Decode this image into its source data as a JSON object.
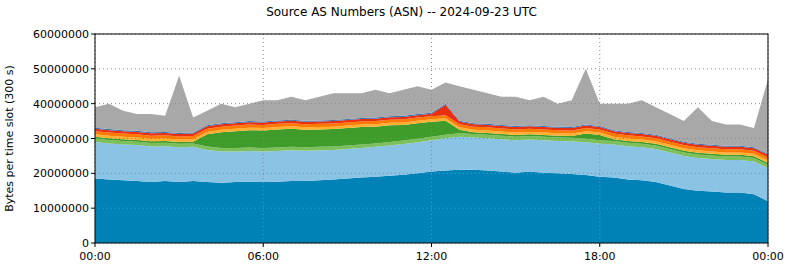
{
  "chart_data": {
    "type": "area",
    "title": "Source AS Numbers (ASN) -- 2024-09-23 UTC",
    "y_label": "Bytes per time slot (300 s)",
    "stacked": true,
    "grid": true,
    "x": [
      0,
      30,
      60,
      90,
      120,
      150,
      180,
      210,
      240,
      270,
      300,
      330,
      360,
      390,
      420,
      450,
      480,
      510,
      540,
      570,
      600,
      630,
      660,
      690,
      720,
      750,
      780,
      810,
      840,
      870,
      900,
      930,
      960,
      990,
      1020,
      1050,
      1080,
      1110,
      1140,
      1170,
      1200,
      1230,
      1260,
      1290,
      1320,
      1350,
      1380,
      1410,
      1440
    ],
    "xlim": [
      0,
      1440
    ],
    "xticks": [
      {
        "value": 0,
        "label": "00:00"
      },
      {
        "value": 360,
        "label": "06:00"
      },
      {
        "value": 720,
        "label": "12:00"
      },
      {
        "value": 1080,
        "label": "18:00"
      },
      {
        "value": 1440,
        "label": "00:00"
      }
    ],
    "ylim": [
      0,
      60000000
    ],
    "yticks": [
      0,
      10000000,
      20000000,
      30000000,
      40000000,
      50000000,
      60000000
    ],
    "series": [
      {
        "color": "#0082b6",
        "values": [
          18500000,
          18200000,
          18000000,
          17800000,
          17500000,
          17800000,
          17500000,
          17800000,
          17500000,
          17300000,
          17500000,
          17600000,
          17500000,
          17600000,
          17800000,
          17800000,
          18000000,
          18200000,
          18500000,
          18800000,
          19000000,
          19300000,
          19600000,
          20000000,
          20500000,
          20800000,
          21000000,
          21000000,
          20800000,
          20500000,
          20200000,
          20500000,
          20200000,
          20000000,
          19800000,
          19500000,
          19000000,
          18800000,
          18200000,
          18000000,
          17500000,
          16500000,
          15500000,
          15000000,
          14800000,
          14500000,
          14500000,
          14000000,
          12000000
        ]
      },
      {
        "color": "#8ac3e4",
        "values": [
          10500000,
          10400000,
          10300000,
          10300000,
          10200000,
          10000000,
          10000000,
          9800000,
          9200000,
          9000000,
          8800000,
          8800000,
          8800000,
          8800000,
          8800000,
          8700000,
          8600000,
          8500000,
          8500000,
          8500000,
          8600000,
          8700000,
          8800000,
          8900000,
          9000000,
          9300000,
          9500000,
          9300000,
          9300000,
          9300000,
          9300000,
          9200000,
          9300000,
          9300000,
          9400000,
          9400000,
          9500000,
          9500000,
          9600000,
          9500000,
          9500000,
          9500000,
          9500000,
          9400000,
          9300000,
          9300000,
          9300000,
          9400000,
          9500000
        ]
      },
      {
        "color": "#7cbf5c",
        "values": [
          1000000,
          1000000,
          1000000,
          1000000,
          1000000,
          1000000,
          1000000,
          1000000,
          1000000,
          1000000,
          1000000,
          1000000,
          1000000,
          1000000,
          1000000,
          1000000,
          1000000,
          1000000,
          1000000,
          1000000,
          1000000,
          1000000,
          1000000,
          1000000,
          1000000,
          1000000,
          1000000,
          1000000,
          1000000,
          1000000,
          1000000,
          1000000,
          1000000,
          1000000,
          1000000,
          1000000,
          1000000,
          1000000,
          1000000,
          1000000,
          1000000,
          1000000,
          1000000,
          1000000,
          1000000,
          1000000,
          1000000,
          1000000,
          1000000
        ]
      },
      {
        "color": "#3f9b2a",
        "values": [
          500000,
          500000,
          500000,
          500000,
          500000,
          500000,
          500000,
          500000,
          3500000,
          4500000,
          4800000,
          5000000,
          5000000,
          5200000,
          5200000,
          5000000,
          5000000,
          5000000,
          5000000,
          5000000,
          4800000,
          4800000,
          4500000,
          4500000,
          4300000,
          4000000,
          1000000,
          500000,
          500000,
          500000,
          500000,
          500000,
          500000,
          500000,
          500000,
          1500000,
          1500000,
          500000,
          500000,
          500000,
          500000,
          500000,
          500000,
          500000,
          500000,
          500000,
          500000,
          500000,
          500000
        ]
      },
      {
        "color": "#ffb030",
        "values": [
          700000,
          700000,
          700000,
          700000,
          700000,
          700000,
          700000,
          700000,
          700000,
          700000,
          700000,
          700000,
          700000,
          700000,
          700000,
          700000,
          700000,
          700000,
          700000,
          700000,
          700000,
          700000,
          700000,
          700000,
          700000,
          700000,
          700000,
          700000,
          700000,
          700000,
          700000,
          700000,
          700000,
          700000,
          700000,
          700000,
          700000,
          700000,
          700000,
          700000,
          700000,
          700000,
          700000,
          700000,
          700000,
          700000,
          700000,
          700000,
          700000
        ]
      },
      {
        "color": "#ff7a00",
        "values": [
          900000,
          900000,
          900000,
          900000,
          900000,
          900000,
          900000,
          900000,
          900000,
          900000,
          900000,
          900000,
          900000,
          900000,
          900000,
          900000,
          900000,
          900000,
          900000,
          900000,
          900000,
          900000,
          900000,
          900000,
          900000,
          900000,
          900000,
          900000,
          900000,
          900000,
          900000,
          900000,
          900000,
          900000,
          900000,
          900000,
          900000,
          900000,
          900000,
          900000,
          900000,
          900000,
          900000,
          900000,
          900000,
          900000,
          900000,
          900000,
          900000
        ]
      },
      {
        "color": "#e83010",
        "values": [
          700000,
          700000,
          700000,
          700000,
          700000,
          700000,
          700000,
          700000,
          700000,
          700000,
          700000,
          700000,
          700000,
          700000,
          700000,
          700000,
          700000,
          700000,
          700000,
          700000,
          700000,
          700000,
          700000,
          700000,
          700000,
          3000000,
          700000,
          700000,
          700000,
          700000,
          700000,
          700000,
          700000,
          700000,
          700000,
          700000,
          700000,
          700000,
          700000,
          700000,
          700000,
          700000,
          700000,
          700000,
          700000,
          700000,
          700000,
          700000,
          700000
        ]
      },
      {
        "color": "#3a6fb0",
        "values": [
          300000,
          300000,
          300000,
          300000,
          300000,
          300000,
          300000,
          300000,
          300000,
          300000,
          300000,
          300000,
          300000,
          300000,
          300000,
          300000,
          300000,
          300000,
          300000,
          300000,
          300000,
          300000,
          300000,
          300000,
          300000,
          300000,
          300000,
          300000,
          300000,
          300000,
          300000,
          300000,
          300000,
          300000,
          300000,
          300000,
          300000,
          300000,
          300000,
          300000,
          300000,
          300000,
          300000,
          300000,
          300000,
          300000,
          300000,
          300000,
          300000
        ]
      },
      {
        "color": "#a8a8a8",
        "values": [
          5900000,
          7300000,
          5600000,
          4800000,
          5200000,
          4600000,
          16400000,
          4300000,
          4200000,
          5600000,
          4300000,
          5000000,
          6100000,
          5800000,
          6600000,
          5900000,
          6800000,
          7700000,
          7400000,
          7100000,
          8000000,
          6600000,
          7500000,
          8000000,
          6600000,
          6100000,
          9900000,
          9600000,
          8800000,
          8100000,
          8400000,
          7200000,
          8400000,
          6600000,
          7700000,
          16000000,
          6400000,
          7600000,
          8100000,
          9400000,
          7900000,
          6900000,
          5900000,
          10500000,
          6800000,
          6100000,
          6100000,
          5500000,
          21400000
        ]
      }
    ]
  }
}
